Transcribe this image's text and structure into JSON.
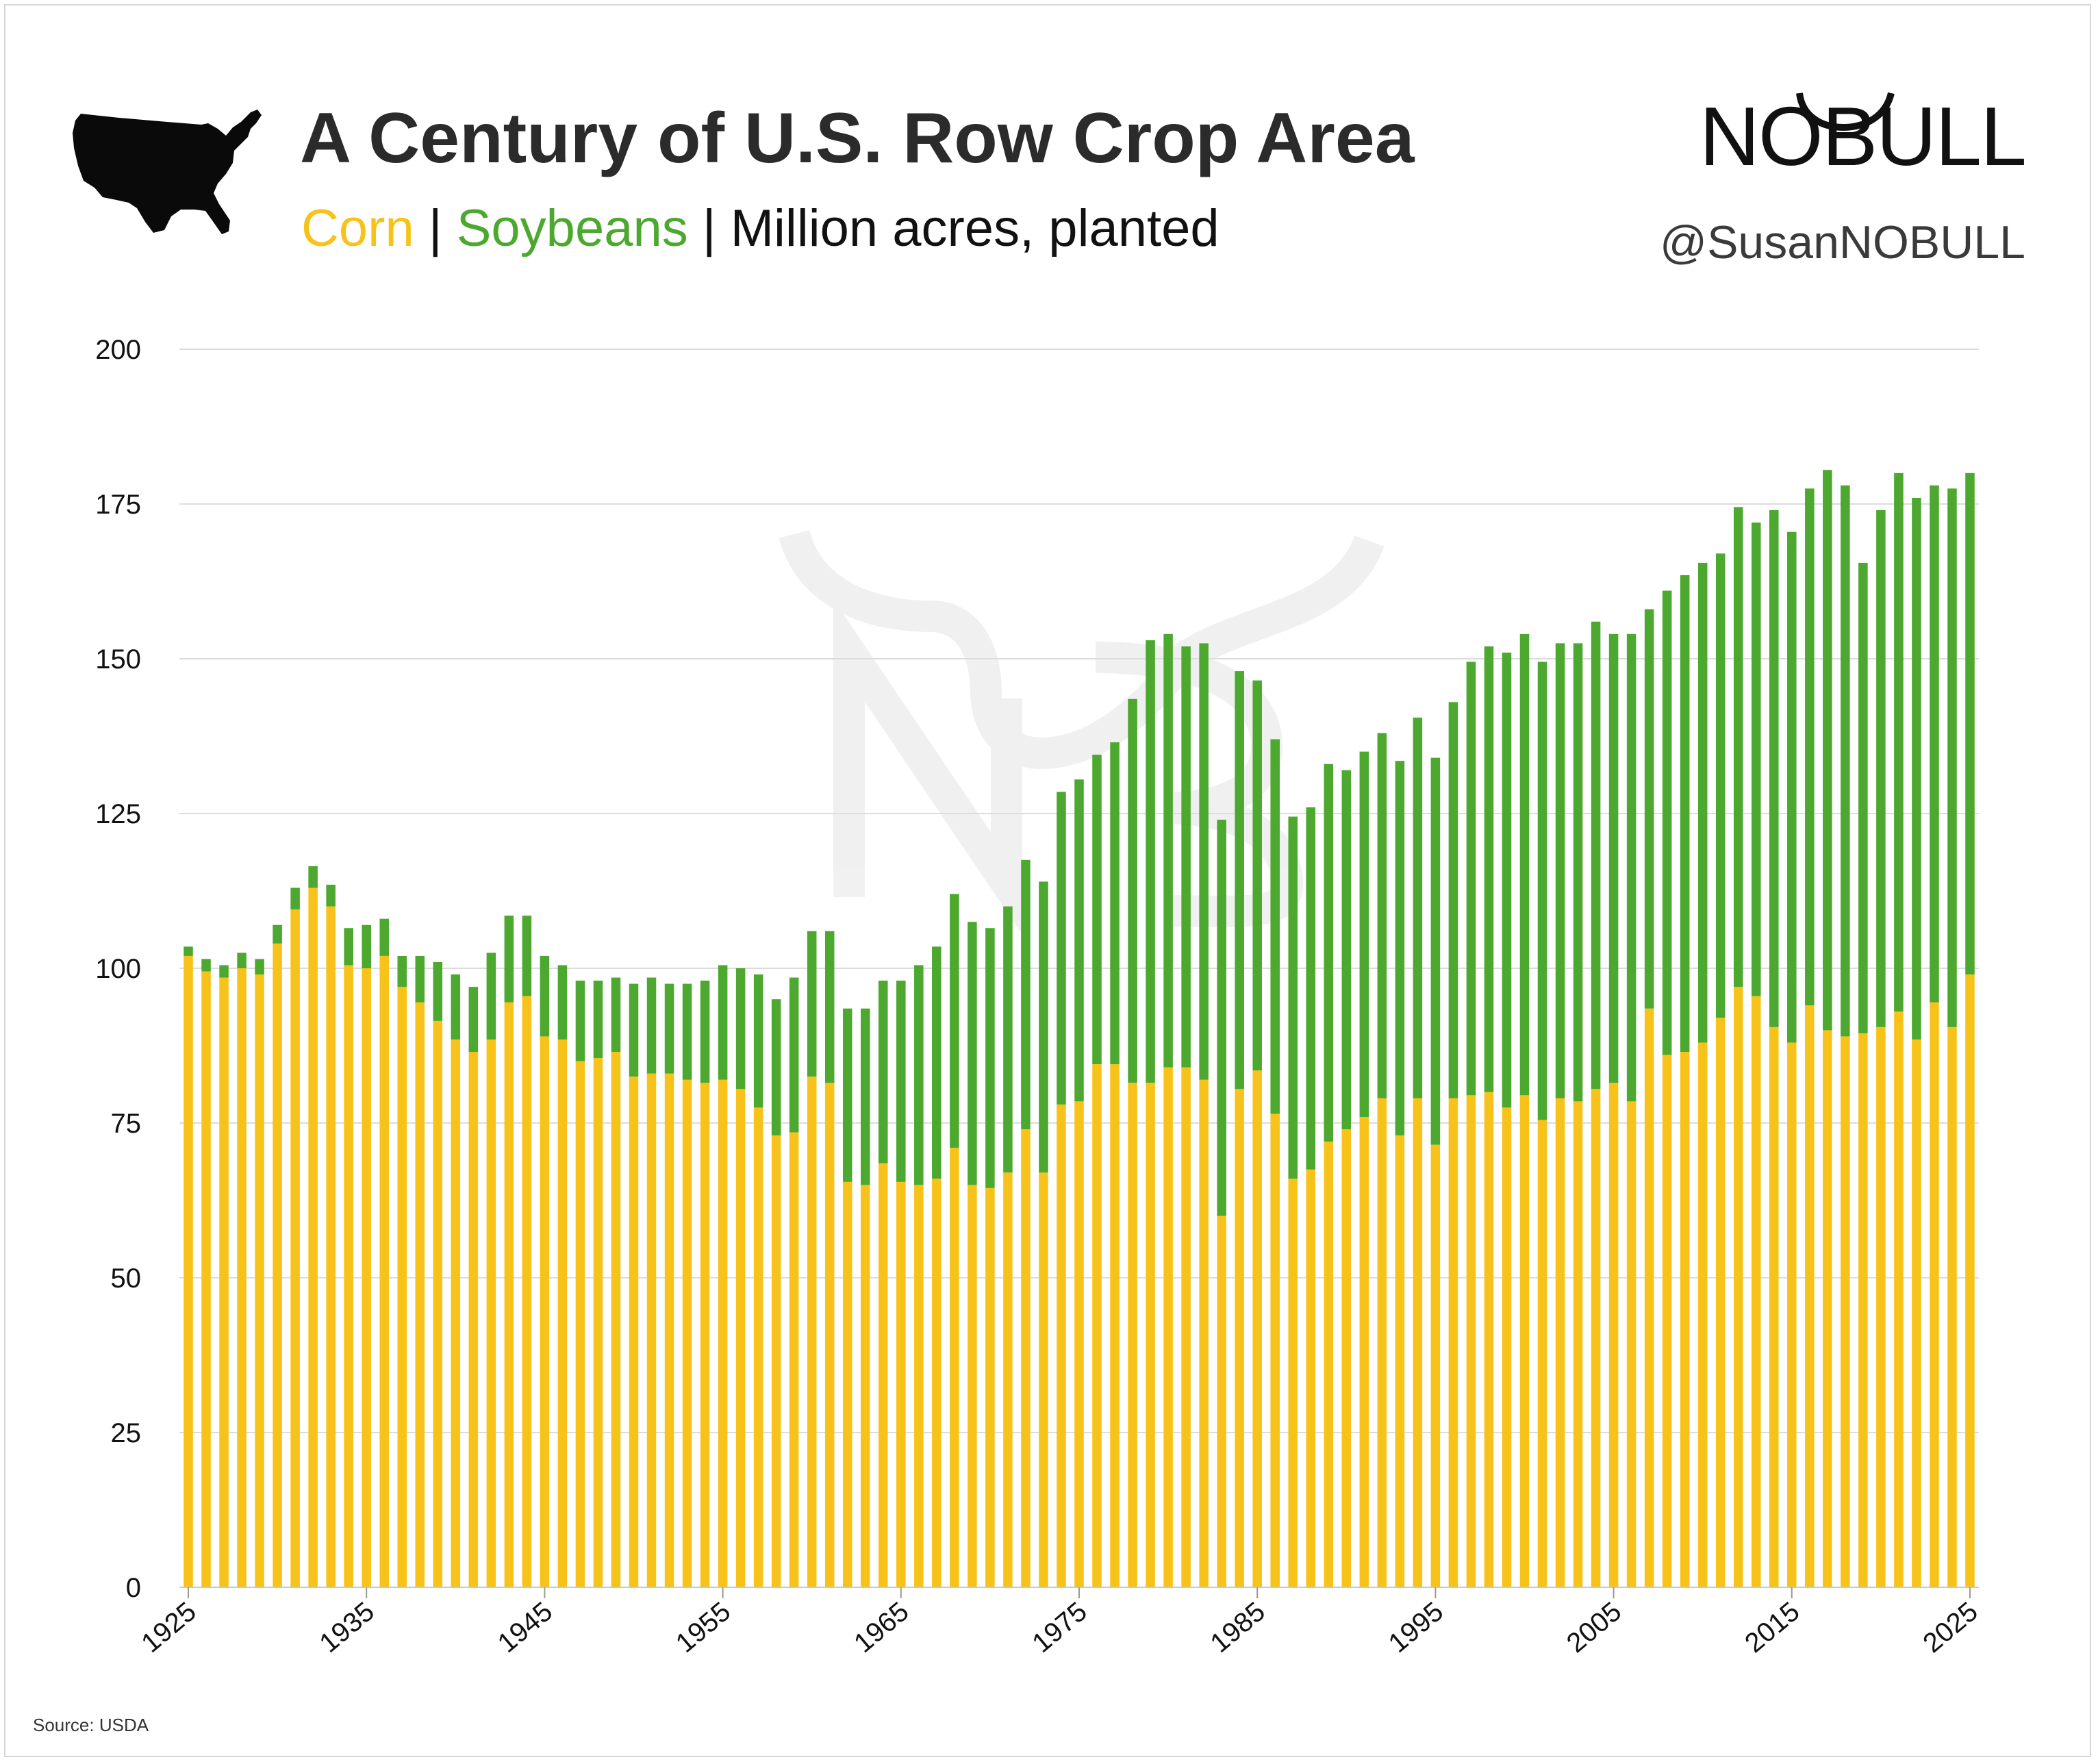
{
  "header": {
    "title": "A Century of U.S. Row Crop Area",
    "subtitle_corn": "Corn",
    "subtitle_sep1": " | ",
    "subtitle_soy": "Soybeans",
    "subtitle_sep2": " | ",
    "subtitle_rest": "Million acres, planted"
  },
  "brand": {
    "logo_text": "NOBULL",
    "handle": "@SusanNOBULL"
  },
  "source": "Source: USDA",
  "colors": {
    "corn": "#f7c31a",
    "soybeans": "#4ca82e",
    "grid": "#dcdcdc",
    "text": "#111111"
  },
  "icons": {
    "map": "us-map-silhouette",
    "watermark": "nb-bull-watermark"
  },
  "chart_data": {
    "type": "bar",
    "stacked": true,
    "title": "A Century of U.S. Row Crop Area",
    "ylabel": "",
    "xlabel": "",
    "ylim": [
      0,
      200
    ],
    "yticks": [
      0,
      25,
      50,
      75,
      100,
      125,
      150,
      175,
      200
    ],
    "xticks": [
      1925,
      1935,
      1945,
      1955,
      1965,
      1975,
      1985,
      1995,
      2005,
      2015,
      2025
    ],
    "grid": true,
    "legend": "subtitle",
    "years": [
      1925,
      1926,
      1927,
      1928,
      1929,
      1930,
      1931,
      1932,
      1933,
      1934,
      1935,
      1936,
      1937,
      1938,
      1939,
      1940,
      1941,
      1942,
      1943,
      1944,
      1945,
      1946,
      1947,
      1948,
      1949,
      1950,
      1951,
      1952,
      1953,
      1954,
      1955,
      1956,
      1957,
      1958,
      1959,
      1960,
      1961,
      1962,
      1963,
      1964,
      1965,
      1966,
      1967,
      1968,
      1969,
      1970,
      1971,
      1972,
      1973,
      1974,
      1975,
      1976,
      1977,
      1978,
      1979,
      1980,
      1981,
      1982,
      1983,
      1984,
      1985,
      1986,
      1987,
      1988,
      1989,
      1990,
      1991,
      1992,
      1993,
      1994,
      1995,
      1996,
      1997,
      1998,
      1999,
      2000,
      2001,
      2002,
      2003,
      2004,
      2005,
      2006,
      2007,
      2008,
      2009,
      2010,
      2011,
      2012,
      2013,
      2014,
      2015,
      2016,
      2017,
      2018,
      2019,
      2020,
      2021,
      2022,
      2023,
      2024,
      2025
    ],
    "series": [
      {
        "name": "Corn",
        "values": [
          102,
          99.5,
          98.5,
          100,
          99,
          104,
          109.5,
          113,
          110,
          100.5,
          100,
          102,
          97,
          94.5,
          91.5,
          88.5,
          86.5,
          88.5,
          94.5,
          95.5,
          89,
          88.5,
          85,
          85.5,
          86.5,
          82.5,
          83,
          83,
          82,
          81.5,
          82,
          80.5,
          77.5,
          73,
          73.5,
          82.5,
          81.5,
          65.5,
          65,
          68.5,
          65.5,
          65,
          66,
          71,
          65,
          64.5,
          67,
          74,
          67,
          78,
          78.5,
          84.5,
          84.5,
          81.5,
          81.5,
          84,
          84,
          82,
          60,
          80.5,
          83.5,
          76.5,
          66,
          67.5,
          72,
          74,
          76,
          79,
          73,
          79,
          71.5,
          79,
          79.5,
          80,
          77.5,
          79.5,
          75.5,
          79,
          78.5,
          80.5,
          81.5,
          78.5,
          93.5,
          86,
          86.5,
          88,
          92,
          97,
          95.5,
          90.5,
          88,
          94,
          90,
          89,
          89.5,
          90.5,
          93,
          88.5,
          94.5,
          90.5,
          99
        ]
      },
      {
        "name": "Soybeans",
        "values": [
          1.5,
          2,
          2,
          2.5,
          2.5,
          3,
          3.5,
          3.5,
          3.5,
          6,
          7,
          6,
          5,
          7.5,
          9.5,
          10.5,
          10.5,
          14,
          14,
          13,
          13,
          12,
          13,
          12.5,
          12,
          15,
          15.5,
          14.5,
          15.5,
          16.5,
          18.5,
          19.5,
          21.5,
          22,
          25,
          23.5,
          24.5,
          28,
          28.5,
          29.5,
          32.5,
          35.5,
          37.5,
          41,
          42.5,
          42,
          43,
          43.5,
          47,
          50.5,
          52,
          50,
          52,
          62,
          71.5,
          70,
          68,
          70.5,
          64,
          67.5,
          63,
          60.5,
          58.5,
          58.5,
          61,
          58,
          59,
          59,
          60.5,
          61.5,
          62.5,
          64,
          70,
          72,
          73.5,
          74.5,
          74,
          73.5,
          74,
          75.5,
          72.5,
          75.5,
          64.5,
          75,
          77,
          77.5,
          75,
          77.5,
          76.5,
          83.5,
          82.5,
          83.5,
          90.5,
          89,
          76,
          83.5,
          87,
          87.5,
          83.5,
          87,
          81
        ]
      }
    ]
  }
}
